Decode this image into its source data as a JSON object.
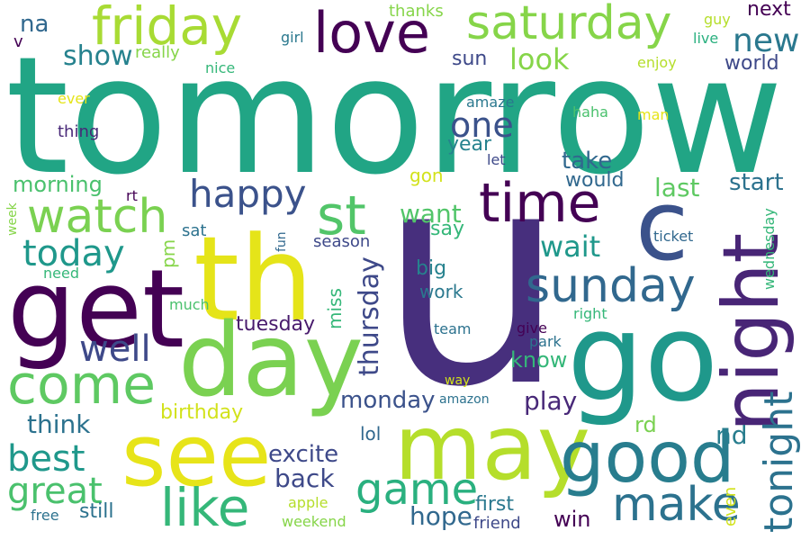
{
  "words": [
    {
      "text": "tomorrow",
      "color": "#21a585"
    },
    {
      "text": "u",
      "color": "#472f7d"
    },
    {
      "text": "th",
      "color": "#e5e419"
    },
    {
      "text": "get",
      "color": "#440154"
    },
    {
      "text": "day",
      "color": "#7ad151"
    },
    {
      "text": "go",
      "color": "#1f988b"
    },
    {
      "text": "may",
      "color": "#b5de2b"
    },
    {
      "text": "see",
      "color": "#e7e419"
    },
    {
      "text": "night",
      "color": "#482576"
    },
    {
      "text": "c",
      "color": "#3b528b"
    },
    {
      "text": "good",
      "color": "#287d8e"
    },
    {
      "text": "love",
      "color": "#440154"
    },
    {
      "text": "friday",
      "color": "#a8db34"
    },
    {
      "text": "saturday",
      "color": "#86d549"
    },
    {
      "text": "time",
      "color": "#440154"
    },
    {
      "text": "come",
      "color": "#5ec962"
    },
    {
      "text": "watch",
      "color": "#7ad151"
    },
    {
      "text": "sunday",
      "color": "#31688e"
    },
    {
      "text": "st",
      "color": "#52c569"
    },
    {
      "text": "like",
      "color": "#35b779"
    },
    {
      "text": "make",
      "color": "#2c728e"
    },
    {
      "text": "game",
      "color": "#2ab07f"
    },
    {
      "text": "tonight",
      "color": "#2c728e"
    },
    {
      "text": "great",
      "color": "#4ac16d"
    },
    {
      "text": "happy",
      "color": "#3b528b"
    },
    {
      "text": "best",
      "color": "#1f988b"
    },
    {
      "text": "today",
      "color": "#1f988b"
    },
    {
      "text": "well",
      "color": "#3e4989"
    },
    {
      "text": "one",
      "color": "#3b528b"
    },
    {
      "text": "new",
      "color": "#2a788e"
    },
    {
      "text": "look",
      "color": "#86d549"
    },
    {
      "text": "show",
      "color": "#26828e"
    },
    {
      "text": "na",
      "color": "#31688e"
    },
    {
      "text": "wait",
      "color": "#1f988b"
    },
    {
      "text": "hope",
      "color": "#31688e"
    },
    {
      "text": "excite",
      "color": "#3e4989"
    },
    {
      "text": "back",
      "color": "#3e4989"
    },
    {
      "text": "monday",
      "color": "#3b528b"
    },
    {
      "text": "play",
      "color": "#482878"
    },
    {
      "text": "think",
      "color": "#2c728e"
    },
    {
      "text": "birthday",
      "color": "#d2e21b"
    },
    {
      "text": "thursday",
      "color": "#3e4989"
    },
    {
      "text": "take",
      "color": "#31688e"
    },
    {
      "text": "last",
      "color": "#5ec962"
    },
    {
      "text": "start",
      "color": "#2c728e"
    },
    {
      "text": "want",
      "color": "#52c569"
    },
    {
      "text": "say",
      "color": "#35b779"
    },
    {
      "text": "big",
      "color": "#26828e"
    },
    {
      "text": "work",
      "color": "#2a788e"
    },
    {
      "text": "would",
      "color": "#31688e"
    },
    {
      "text": "year",
      "color": "#26828e"
    },
    {
      "text": "sun",
      "color": "#3e4989"
    },
    {
      "text": "morning",
      "color": "#4ac16d"
    },
    {
      "text": "next",
      "color": "#440154"
    },
    {
      "text": "world",
      "color": "#3e4989"
    },
    {
      "text": "know",
      "color": "#35b779"
    },
    {
      "text": "win",
      "color": "#440154"
    },
    {
      "text": "nd",
      "color": "#287d8e"
    },
    {
      "text": "rd",
      "color": "#7ad151"
    },
    {
      "text": "tuesday",
      "color": "#481a6c"
    },
    {
      "text": "miss",
      "color": "#35b779"
    },
    {
      "text": "still",
      "color": "#2c728e"
    },
    {
      "text": "first",
      "color": "#2a788e"
    },
    {
      "text": "friend",
      "color": "#3e4989"
    },
    {
      "text": "gon",
      "color": "#d2e21b"
    },
    {
      "text": "wednesday",
      "color": "#35b779"
    },
    {
      "text": "even",
      "color": "#d2e21b"
    },
    {
      "text": "season",
      "color": "#3e4989"
    },
    {
      "text": "sat",
      "color": "#2c728e"
    },
    {
      "text": "pm",
      "color": "#86d549"
    },
    {
      "text": "lol",
      "color": "#31688e"
    },
    {
      "text": "thanks",
      "color": "#86d549"
    },
    {
      "text": "girl",
      "color": "#2a788e"
    },
    {
      "text": "really",
      "color": "#86d549"
    },
    {
      "text": "nice",
      "color": "#35b779"
    },
    {
      "text": "v",
      "color": "#440154"
    },
    {
      "text": "guy",
      "color": "#b5de2b"
    },
    {
      "text": "live",
      "color": "#2ab07f"
    },
    {
      "text": "enjoy",
      "color": "#b5de2b"
    },
    {
      "text": "ever",
      "color": "#e5e419"
    },
    {
      "text": "thing",
      "color": "#482878"
    },
    {
      "text": "amaze",
      "color": "#2a788e"
    },
    {
      "text": "haha",
      "color": "#4ac16d"
    },
    {
      "text": "man",
      "color": "#e5e419"
    },
    {
      "text": "let",
      "color": "#3e4989"
    },
    {
      "text": "rt",
      "color": "#440154"
    },
    {
      "text": "fun",
      "color": "#31688e"
    },
    {
      "text": "week",
      "color": "#86d549"
    },
    {
      "text": "need",
      "color": "#35b779"
    },
    {
      "text": "much",
      "color": "#4ac16d"
    },
    {
      "text": "team",
      "color": "#2c728e"
    },
    {
      "text": "give",
      "color": "#440154"
    },
    {
      "text": "park",
      "color": "#2c728e"
    },
    {
      "text": "right",
      "color": "#35b779"
    },
    {
      "text": "ticket",
      "color": "#31688e"
    },
    {
      "text": "way",
      "color": "#d2e21b"
    },
    {
      "text": "amazon",
      "color": "#2c728e"
    },
    {
      "text": "apple",
      "color": "#b5de2b"
    },
    {
      "text": "weekend",
      "color": "#86d549"
    },
    {
      "text": "free",
      "color": "#2c728e"
    }
  ]
}
